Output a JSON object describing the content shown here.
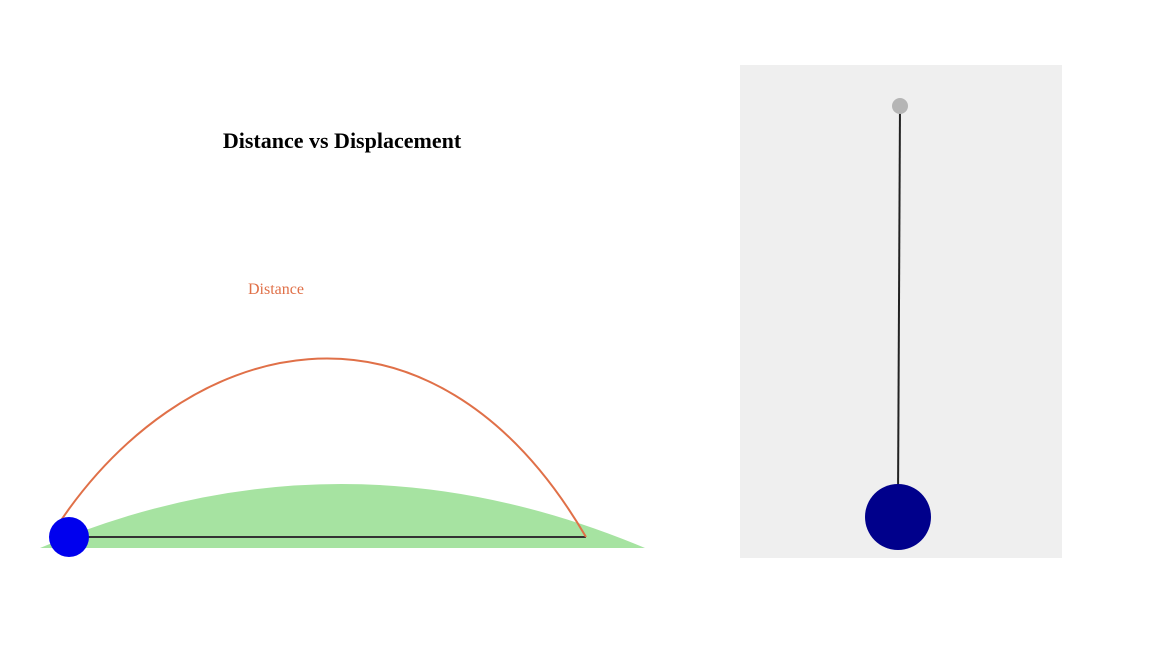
{
  "title": "Distance vs Displacement",
  "path_label": "Distance",
  "colors": {
    "background": "#ffffff",
    "title": "#000000",
    "distance_path": "#e07048",
    "displacement_line": "#333333",
    "hill": "#a6e3a1",
    "ball": "#0000ee",
    "pendulum_panel": "#efefef",
    "pendulum_pivot": "#b5b5b5",
    "pendulum_rod": "#222222",
    "pendulum_bob": "#00008b"
  },
  "icons": {
    "ball": "ball-icon",
    "pendulum_pivot": "pivot-icon",
    "pendulum_bob": "bob-icon"
  }
}
